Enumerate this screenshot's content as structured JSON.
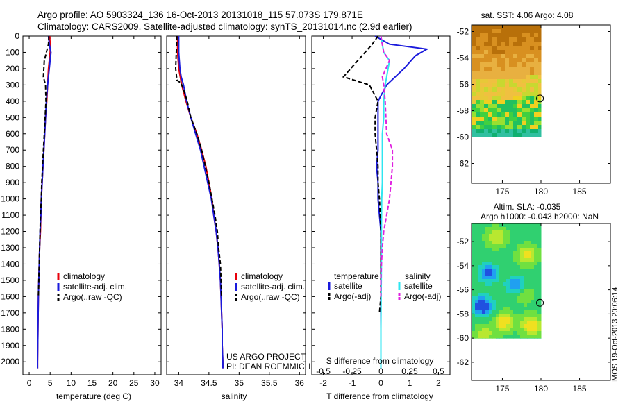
{
  "header": {
    "line1": "Argo profile: AO 5903324_136 16-Oct-2013 20131018_115 57.073S 179.871E",
    "line2": "Climatology: CARS2009. Satellite-adjusted climatology: synTS_20131014.nc (2.9d earlier)"
  },
  "colors": {
    "climatology": "#e8000b",
    "satellite": "#1a1adc",
    "argo": "#000000",
    "salinity_satellite": "#2ee6f0",
    "salinity_argo": "#e020e0"
  },
  "chart_data": [
    {
      "type": "line",
      "name": "temperature-profile",
      "xlabel": "temperature (deg C)",
      "xlim": [
        -1.5,
        31.5
      ],
      "ylim": [
        2080,
        0
      ],
      "xticks": [
        "0",
        "5",
        "10",
        "15",
        "20",
        "25",
        "30"
      ],
      "yticks": [
        "0",
        "100",
        "200",
        "300",
        "400",
        "500",
        "600",
        "700",
        "800",
        "900",
        "1000",
        "1100",
        "1200",
        "1300",
        "1400",
        "1500",
        "1600",
        "1700",
        "1800",
        "1900",
        "2000"
      ],
      "legend": [
        "climatology",
        "satellite-adj. clim.",
        "Argo(..raw -QC)"
      ],
      "series": [
        {
          "name": "climatology",
          "color": "#e8000b",
          "dash": "",
          "points": [
            [
              4.9,
              0
            ],
            [
              5.0,
              50
            ],
            [
              5.0,
              100
            ],
            [
              4.6,
              200
            ],
            [
              4.4,
              300
            ],
            [
              4.2,
              400
            ],
            [
              3.9,
              500
            ],
            [
              3.7,
              600
            ],
            [
              3.5,
              700
            ],
            [
              3.3,
              800
            ],
            [
              3.1,
              900
            ],
            [
              2.9,
              1000
            ],
            [
              2.8,
              1100
            ],
            [
              2.7,
              1200
            ],
            [
              2.5,
              1300
            ],
            [
              2.4,
              1400
            ],
            [
              2.3,
              1500
            ],
            [
              2.2,
              1600
            ],
            [
              2.15,
              1700
            ],
            [
              2.1,
              1800
            ],
            [
              2.05,
              1900
            ],
            [
              2.0,
              2000
            ],
            [
              2.0,
              2040
            ]
          ]
        },
        {
          "name": "satellite-adj. clim.",
          "color": "#1a1adc",
          "dash": "",
          "points": [
            [
              4.6,
              0
            ],
            [
              4.8,
              50
            ],
            [
              5.2,
              100
            ],
            [
              4.8,
              200
            ],
            [
              4.4,
              300
            ],
            [
              4.1,
              400
            ],
            [
              3.9,
              500
            ],
            [
              3.7,
              600
            ],
            [
              3.5,
              700
            ],
            [
              3.3,
              800
            ],
            [
              3.1,
              900
            ],
            [
              2.9,
              1000
            ],
            [
              2.8,
              1100
            ],
            [
              2.6,
              1200
            ],
            [
              2.5,
              1300
            ],
            [
              2.4,
              1400
            ],
            [
              2.3,
              1500
            ],
            [
              2.2,
              1600
            ],
            [
              2.15,
              1700
            ],
            [
              2.1,
              1800
            ],
            [
              2.05,
              1900
            ],
            [
              2.0,
              2000
            ],
            [
              2.0,
              2040
            ]
          ]
        },
        {
          "name": "Argo(..raw -QC)",
          "color": "#000000",
          "dash": "6,3",
          "points": [
            [
              4.7,
              0
            ],
            [
              4.6,
              50
            ],
            [
              4.1,
              100
            ],
            [
              3.6,
              150
            ],
            [
              3.4,
              250
            ],
            [
              3.9,
              300
            ],
            [
              4.0,
              400
            ],
            [
              3.8,
              500
            ],
            [
              3.6,
              600
            ],
            [
              3.4,
              700
            ],
            [
              3.2,
              800
            ],
            [
              3.0,
              900
            ],
            [
              2.9,
              1000
            ],
            [
              2.7,
              1100
            ],
            [
              2.6,
              1200
            ],
            [
              2.5,
              1300
            ],
            [
              2.4,
              1400
            ],
            [
              2.3,
              1500
            ],
            [
              2.2,
              1600
            ]
          ]
        }
      ]
    },
    {
      "type": "line",
      "name": "salinity-profile",
      "xlabel": "salinity",
      "xlim": [
        33.8,
        36.1
      ],
      "ylim": [
        2080,
        0
      ],
      "xticks": [
        "34",
        "34.5",
        "35",
        "35.5",
        "36"
      ],
      "legend": [
        "climatology",
        "satellite-adj. clim.",
        "Argo(..raw -QC)"
      ],
      "annotation": [
        "US ARGO PROJECT",
        "PI: DEAN ROEMMICH"
      ],
      "series": [
        {
          "name": "climatology",
          "color": "#e8000b",
          "dash": "",
          "points": [
            [
              33.98,
              0
            ],
            [
              33.98,
              100
            ],
            [
              34.0,
              200
            ],
            [
              34.05,
              300
            ],
            [
              34.12,
              400
            ],
            [
              34.2,
              500
            ],
            [
              34.3,
              600
            ],
            [
              34.38,
              700
            ],
            [
              34.45,
              800
            ],
            [
              34.5,
              900
            ],
            [
              34.55,
              1000
            ],
            [
              34.58,
              1100
            ],
            [
              34.62,
              1200
            ],
            [
              34.65,
              1300
            ],
            [
              34.67,
              1400
            ],
            [
              34.69,
              1500
            ],
            [
              34.7,
              1600
            ],
            [
              34.71,
              1700
            ],
            [
              34.72,
              1800
            ],
            [
              34.72,
              1900
            ],
            [
              34.73,
              2000
            ],
            [
              34.73,
              2040
            ]
          ]
        },
        {
          "name": "satellite-adj. clim.",
          "color": "#1a1adc",
          "dash": "",
          "points": [
            [
              34.0,
              0
            ],
            [
              34.0,
              100
            ],
            [
              34.02,
              200
            ],
            [
              34.04,
              250
            ],
            [
              34.08,
              300
            ],
            [
              34.13,
              400
            ],
            [
              34.2,
              500
            ],
            [
              34.28,
              600
            ],
            [
              34.36,
              700
            ],
            [
              34.42,
              800
            ],
            [
              34.48,
              900
            ],
            [
              34.54,
              1000
            ],
            [
              34.58,
              1100
            ],
            [
              34.62,
              1200
            ],
            [
              34.65,
              1300
            ],
            [
              34.67,
              1400
            ],
            [
              34.69,
              1500
            ],
            [
              34.7,
              1600
            ],
            [
              34.71,
              1700
            ],
            [
              34.72,
              1800
            ],
            [
              34.72,
              1900
            ],
            [
              34.73,
              2000
            ],
            [
              34.73,
              2040
            ]
          ]
        },
        {
          "name": "Argo(..raw -QC)",
          "color": "#000000",
          "dash": "6,3",
          "points": [
            [
              33.97,
              0
            ],
            [
              33.96,
              100
            ],
            [
              33.95,
              200
            ],
            [
              33.97,
              270
            ],
            [
              34.04,
              290
            ],
            [
              34.1,
              350
            ],
            [
              34.14,
              400
            ],
            [
              34.2,
              500
            ],
            [
              34.3,
              600
            ],
            [
              34.38,
              700
            ],
            [
              34.44,
              800
            ],
            [
              34.5,
              900
            ],
            [
              34.55,
              1000
            ],
            [
              34.6,
              1100
            ],
            [
              34.64,
              1200
            ],
            [
              34.66,
              1300
            ],
            [
              34.69,
              1400
            ],
            [
              34.7,
              1500
            ],
            [
              34.71,
              1600
            ]
          ]
        }
      ]
    },
    {
      "type": "line",
      "name": "difference-profile",
      "xlabel": "T difference from climatology",
      "xlabel_top": "S difference from climatology",
      "xlim": [
        -2.4,
        2.4
      ],
      "ylim": [
        2080,
        0
      ],
      "xticks": [
        "-2",
        "-1",
        "0",
        "1",
        "2"
      ],
      "xticks_s": [
        "-0.5",
        "-0.25",
        "0",
        "0.25",
        "0.5"
      ],
      "legend_temperature": {
        "title": "temperature",
        "items": [
          "satellite",
          "Argo(-adj)"
        ]
      },
      "legend_salinity": {
        "title": "salinity",
        "items": [
          "satellite",
          "Argo(-adj)"
        ]
      },
      "series": [
        {
          "name": "T satellite",
          "color": "#1a1adc",
          "dash": "",
          "points": [
            [
              -0.2,
              0
            ],
            [
              0.3,
              50
            ],
            [
              1.6,
              80
            ],
            [
              1.2,
              120
            ],
            [
              0.8,
              200
            ],
            [
              0.5,
              250
            ],
            [
              0.2,
              300
            ],
            [
              -0.1,
              400
            ],
            [
              -0.1,
              500
            ],
            [
              -0.1,
              600
            ],
            [
              -0.1,
              700
            ],
            [
              -0.15,
              800
            ],
            [
              -0.1,
              900
            ],
            [
              -0.1,
              1000
            ],
            [
              -0.05,
              1100
            ],
            [
              0,
              1200
            ],
            [
              0,
              1300
            ],
            [
              0,
              1400
            ],
            [
              0,
              1500
            ],
            [
              0,
              1600
            ],
            [
              0,
              1700
            ],
            [
              0,
              1800
            ],
            [
              0,
              1900
            ],
            [
              0,
              2000
            ],
            [
              0,
              2040
            ]
          ]
        },
        {
          "name": "T Argo(-adj)",
          "color": "#000000",
          "dash": "6,3",
          "points": [
            [
              -0.1,
              0
            ],
            [
              -0.3,
              50
            ],
            [
              -0.8,
              150
            ],
            [
              -1.3,
              250
            ],
            [
              -0.4,
              300
            ],
            [
              -0.1,
              400
            ],
            [
              -0.2,
              500
            ],
            [
              -0.2,
              600
            ],
            [
              -0.15,
              700
            ],
            [
              -0.1,
              800
            ],
            [
              -0.1,
              900
            ],
            [
              -0.05,
              1000
            ],
            [
              0,
              1200
            ],
            [
              0,
              1400
            ],
            [
              0,
              1600
            ],
            [
              -0.05,
              1700
            ]
          ]
        },
        {
          "name": "S satellite",
          "color": "#2ee6f0",
          "dash": "",
          "points": [
            [
              0,
              0
            ],
            [
              0.1,
              100
            ],
            [
              0.3,
              150
            ],
            [
              0.2,
              250
            ],
            [
              0.15,
              300
            ],
            [
              0.1,
              400
            ],
            [
              0.1,
              500
            ],
            [
              0.05,
              600
            ],
            [
              0.05,
              700
            ],
            [
              0.05,
              800
            ],
            [
              0.05,
              900
            ],
            [
              0.03,
              1000
            ],
            [
              0.02,
              1200
            ],
            [
              0.02,
              1400
            ],
            [
              0.01,
              1600
            ],
            [
              0,
              1800
            ],
            [
              0,
              2000
            ],
            [
              0,
              2040
            ]
          ]
        },
        {
          "name": "S Argo(-adj)",
          "color": "#e020e0",
          "dash": "6,3",
          "points": [
            [
              0,
              0
            ],
            [
              0.1,
              100
            ],
            [
              0.3,
              150
            ],
            [
              0.05,
              250
            ],
            [
              0.1,
              300
            ],
            [
              0.15,
              400
            ],
            [
              0.2,
              600
            ],
            [
              0.4,
              700
            ],
            [
              0.4,
              800
            ],
            [
              0.35,
              900
            ],
            [
              0.3,
              1000
            ],
            [
              0.2,
              1100
            ],
            [
              0.1,
              1200
            ],
            [
              0.05,
              1300
            ],
            [
              0.02,
              1400
            ],
            [
              0.0,
              1500
            ],
            [
              0.0,
              1600
            ]
          ]
        }
      ]
    },
    {
      "type": "heatmap",
      "name": "sst-map",
      "title": "sat. SST: 4.06  Argo: 4.08",
      "xlim": [
        171,
        189
      ],
      "ylim": [
        -63.5,
        -51.5
      ],
      "xticks": [
        "175",
        "180",
        "185"
      ],
      "yticks": [
        "-52",
        "-54",
        "-56",
        "-58",
        "-60",
        "-62"
      ],
      "data_extent": {
        "lon": [
          171,
          180
        ],
        "lat": [
          -60,
          -51.5
        ]
      },
      "marker": {
        "lon": 179.871,
        "lat": -57.073
      }
    },
    {
      "type": "heatmap",
      "name": "sla-map",
      "title": "Altim. SLA: -0.035",
      "subtitle": "Argo h1000: -0.043 h2000: NaN",
      "xlim": [
        171,
        189
      ],
      "ylim": [
        -63.5,
        -50.5
      ],
      "xticks": [
        "175",
        "180",
        "185"
      ],
      "yticks": [
        "-52",
        "-54",
        "-56",
        "-58",
        "-60",
        "-62"
      ],
      "data_extent": {
        "lon": [
          171,
          180
        ],
        "lat": [
          -60,
          -50.5
        ]
      },
      "marker": {
        "lon": 179.871,
        "lat": -57.073
      }
    }
  ],
  "footer": {
    "timestamp": "IMOS 19-Oct-2013 20:06:14"
  }
}
